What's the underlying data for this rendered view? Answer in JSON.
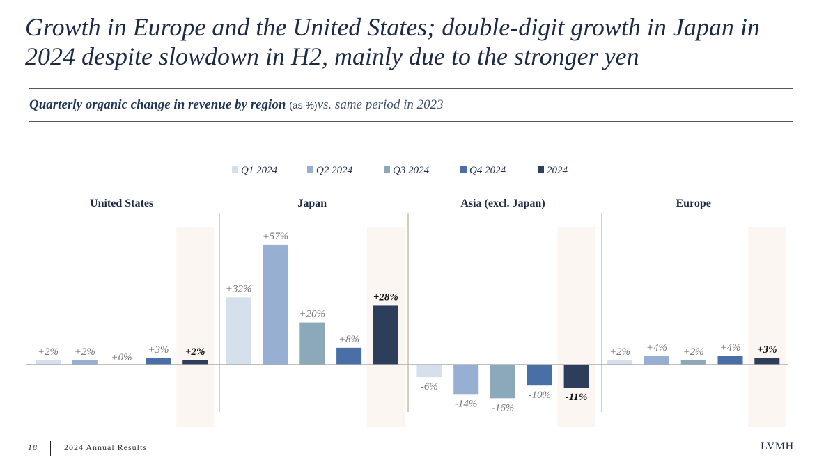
{
  "title": "Growth in Europe and the United States; double-digit growth in Japan in 2024 despite slowdown in H2, mainly due to the stronger yen",
  "subtitle": {
    "bold": "Quarterly organic change in revenue by region",
    "unit": "(as %)",
    "rest": "vs. same period in 2023"
  },
  "footer": {
    "page": "18",
    "label": "2024 Annual Results",
    "brand": "LVMH"
  },
  "chart_data": {
    "type": "bar",
    "unit": "%",
    "regions": [
      "United States",
      "Japan",
      "Asia (excl. Japan)",
      "Europe"
    ],
    "series": [
      {
        "name": "Q1 2024",
        "color": "#d6e0ec",
        "values": [
          2,
          32,
          -6,
          2
        ],
        "labels": [
          "+2%",
          "+32%",
          "-6%",
          "+2%"
        ]
      },
      {
        "name": "Q2 2024",
        "color": "#97afd2",
        "values": [
          2,
          57,
          -14,
          4
        ],
        "labels": [
          "+2%",
          "+57%",
          "-14%",
          "+4%"
        ]
      },
      {
        "name": "Q3 2024",
        "color": "#8ba9b8",
        "values": [
          0,
          20,
          -16,
          2
        ],
        "labels": [
          "+0%",
          "+20%",
          "-16%",
          "+2%"
        ]
      },
      {
        "name": "Q4 2024",
        "color": "#4a6ea6",
        "values": [
          3,
          8,
          -10,
          4
        ],
        "labels": [
          "+3%",
          "+8%",
          "-10%",
          "+4%"
        ]
      },
      {
        "name": "2024",
        "color": "#2c3e5a",
        "values": [
          2,
          28,
          -11,
          3
        ],
        "labels": [
          "+2%",
          "+28%",
          "-11%",
          "+3%"
        ]
      }
    ],
    "highlight_series": "2024",
    "highlight_color": "#fbf6f1",
    "legend_position": "top",
    "grid": false
  }
}
